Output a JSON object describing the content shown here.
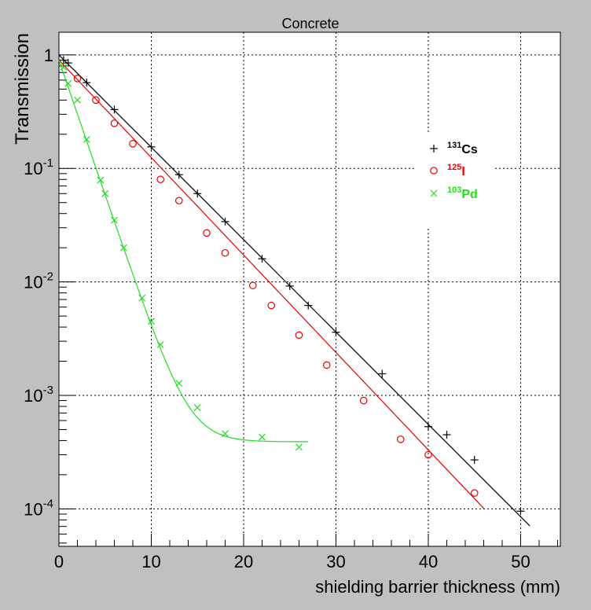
{
  "chart_data": {
    "type": "scatter",
    "title": "Concrete",
    "xlabel": "shielding barrier thickness (mm)",
    "ylabel": "Transmission",
    "xlim": [
      0,
      54.3
    ],
    "ylim_log10": [
      -4.33,
      0.2
    ],
    "yscale": "log",
    "grid": true,
    "legend_position": "upper-right",
    "x_ticks": [
      {
        "value": 0,
        "label": "0"
      },
      {
        "value": 10,
        "label": "10"
      },
      {
        "value": 20,
        "label": "20"
      },
      {
        "value": 30,
        "label": "30"
      },
      {
        "value": 40,
        "label": "40"
      },
      {
        "value": 50,
        "label": "50"
      }
    ],
    "y_ticks": [
      {
        "value": 1,
        "base": "1",
        "exp": ""
      },
      {
        "value": 0.1,
        "base": "10",
        "exp": "-1"
      },
      {
        "value": 0.01,
        "base": "10",
        "exp": "-2"
      },
      {
        "value": 0.001,
        "base": "10",
        "exp": "-3"
      },
      {
        "value": 0.0001,
        "base": "10",
        "exp": "-4"
      }
    ],
    "series": [
      {
        "name_sup": "131",
        "name_main": "Cs",
        "color": "#000000",
        "marker": "plus",
        "x": [
          0.5,
          1,
          3,
          6,
          10,
          13,
          15,
          18,
          22,
          25,
          27,
          30,
          35,
          40,
          42,
          45,
          50
        ],
        "y": [
          0.9,
          0.85,
          0.57,
          0.33,
          0.155,
          0.088,
          0.06,
          0.034,
          0.016,
          0.0092,
          0.0062,
          0.0036,
          0.00155,
          0.00053,
          0.00045,
          0.00027,
          9.55e-05
        ],
        "fit": {
          "type": "exp",
          "x0": 0,
          "x1": 51,
          "y0": 1.0,
          "k": 0.1874
        }
      },
      {
        "name_sup": "125",
        "name_main": "I",
        "color": "#e60000",
        "marker": "circle",
        "x": [
          2,
          4,
          6,
          8,
          11,
          13,
          16,
          18,
          21,
          23,
          26,
          29,
          33,
          37,
          40,
          45
        ],
        "y": [
          0.62,
          0.4,
          0.25,
          0.165,
          0.08,
          0.052,
          0.027,
          0.018,
          0.0093,
          0.0062,
          0.0034,
          0.00185,
          0.0009,
          0.00041,
          0.0003,
          0.000138
        ],
        "fit": {
          "type": "exp",
          "x0": 0,
          "x1": 46,
          "y0": 0.9,
          "k": 0.1977
        }
      },
      {
        "name_sup": "103",
        "name_main": "Pd",
        "color": "#22dd22",
        "marker": "cross",
        "x": [
          0.5,
          1,
          2,
          3,
          4.5,
          5,
          6,
          7,
          9,
          10,
          11,
          13,
          15,
          18,
          22,
          26
        ],
        "y": [
          0.78,
          0.56,
          0.4,
          0.18,
          0.079,
          0.06,
          0.035,
          0.02,
          0.0072,
          0.0045,
          0.0028,
          0.00128,
          0.00078,
          0.00046,
          0.00043,
          0.00035
        ],
        "fit": {
          "type": "exp_plus_const",
          "x0": 0,
          "x1": 27,
          "a": 0.9,
          "k": 0.5472,
          "c": 0.00039
        }
      }
    ]
  }
}
